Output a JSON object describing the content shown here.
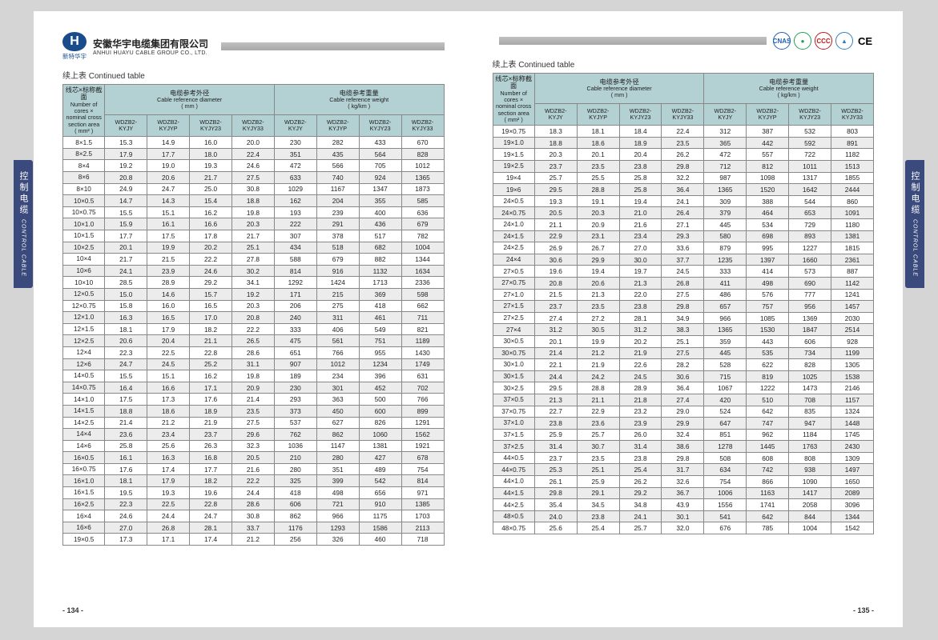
{
  "company": {
    "name_cn": "安徽华宇电缆集团有限公司",
    "name_en": "ANHUI HUAYU CABLE GROUP CO., LTD.",
    "sublogo": "新特华宇"
  },
  "continued": "续上表 Continued table",
  "sidetab": {
    "cn": "控制电缆",
    "en": "CONTROL CABLE"
  },
  "headers": {
    "spec": {
      "cn": "线芯×标称截面",
      "en1": "Number of cores ×",
      "en2": "nominal cross",
      "en3": "section area",
      "unit": "( mm² )"
    },
    "dia": {
      "cn": "电缆参考外径",
      "en": "Cable reference diameter",
      "unit": "( mm )"
    },
    "wt": {
      "cn": "电缆参考重量",
      "en": "Cable reference weight",
      "unit": "( kg/km )"
    },
    "cols": [
      "WDZB2-KYJY",
      "WDZB2-KYJYP",
      "WDZB2-KYJY23",
      "WDZB2-KYJY33"
    ]
  },
  "certs": [
    "CNAS",
    "●",
    "CCC",
    "▲",
    "CE"
  ],
  "cert_colors": [
    "#2060b0",
    "#20a050",
    "#c01818",
    "#3080c0",
    "#000"
  ],
  "pages": {
    "left": "- 134 -",
    "right": "- 135 -"
  },
  "left_rows": [
    [
      "8×1.5",
      "15.3",
      "14.9",
      "16.0",
      "20.0",
      "230",
      "282",
      "433",
      "670"
    ],
    [
      "8×2.5",
      "17.9",
      "17.7",
      "18.0",
      "22.4",
      "351",
      "435",
      "564",
      "828"
    ],
    [
      "8×4",
      "19.2",
      "19.0",
      "19.3",
      "24.6",
      "472",
      "566",
      "705",
      "1012"
    ],
    [
      "8×6",
      "20.8",
      "20.6",
      "21.7",
      "27.5",
      "633",
      "740",
      "924",
      "1365"
    ],
    [
      "8×10",
      "24.9",
      "24.7",
      "25.0",
      "30.8",
      "1029",
      "1167",
      "1347",
      "1873"
    ],
    [
      "10×0.5",
      "14.7",
      "14.3",
      "15.4",
      "18.8",
      "162",
      "204",
      "355",
      "585"
    ],
    [
      "10×0.75",
      "15.5",
      "15.1",
      "16.2",
      "19.8",
      "193",
      "239",
      "400",
      "636"
    ],
    [
      "10×1.0",
      "15.9",
      "16.1",
      "16.6",
      "20.3",
      "222",
      "291",
      "436",
      "679"
    ],
    [
      "10×1.5",
      "17.7",
      "17.5",
      "17.8",
      "21.7",
      "307",
      "378",
      "517",
      "782"
    ],
    [
      "10×2.5",
      "20.1",
      "19.9",
      "20.2",
      "25.1",
      "434",
      "518",
      "682",
      "1004"
    ],
    [
      "10×4",
      "21.7",
      "21.5",
      "22.2",
      "27.8",
      "588",
      "679",
      "882",
      "1344"
    ],
    [
      "10×6",
      "24.1",
      "23.9",
      "24.6",
      "30.2",
      "814",
      "916",
      "1132",
      "1634"
    ],
    [
      "10×10",
      "28.5",
      "28.9",
      "29.2",
      "34.1",
      "1292",
      "1424",
      "1713",
      "2336"
    ],
    [
      "12×0.5",
      "15.0",
      "14.6",
      "15.7",
      "19.2",
      "171",
      "215",
      "369",
      "598"
    ],
    [
      "12×0.75",
      "15.8",
      "16.0",
      "16.5",
      "20.3",
      "206",
      "275",
      "418",
      "662"
    ],
    [
      "12×1.0",
      "16.3",
      "16.5",
      "17.0",
      "20.8",
      "240",
      "311",
      "461",
      "711"
    ],
    [
      "12×1.5",
      "18.1",
      "17.9",
      "18.2",
      "22.2",
      "333",
      "406",
      "549",
      "821"
    ],
    [
      "12×2.5",
      "20.6",
      "20.4",
      "21.1",
      "26.5",
      "475",
      "561",
      "751",
      "1189"
    ],
    [
      "12×4",
      "22.3",
      "22.5",
      "22.8",
      "28.6",
      "651",
      "766",
      "955",
      "1430"
    ],
    [
      "12×6",
      "24.7",
      "24.5",
      "25.2",
      "31.1",
      "907",
      "1012",
      "1234",
      "1749"
    ],
    [
      "14×0.5",
      "15.5",
      "15.1",
      "16.2",
      "19.8",
      "189",
      "234",
      "396",
      "631"
    ],
    [
      "14×0.75",
      "16.4",
      "16.6",
      "17.1",
      "20.9",
      "230",
      "301",
      "452",
      "702"
    ],
    [
      "14×1.0",
      "17.5",
      "17.3",
      "17.6",
      "21.4",
      "293",
      "363",
      "500",
      "766"
    ],
    [
      "14×1.5",
      "18.8",
      "18.6",
      "18.9",
      "23.5",
      "373",
      "450",
      "600",
      "899"
    ],
    [
      "14×2.5",
      "21.4",
      "21.2",
      "21.9",
      "27.5",
      "537",
      "627",
      "826",
      "1291"
    ],
    [
      "14×4",
      "23.6",
      "23.4",
      "23.7",
      "29.6",
      "762",
      "862",
      "1060",
      "1562"
    ],
    [
      "14×6",
      "25.8",
      "25.6",
      "26.3",
      "32.3",
      "1036",
      "1147",
      "1381",
      "1921"
    ],
    [
      "16×0.5",
      "16.1",
      "16.3",
      "16.8",
      "20.5",
      "210",
      "280",
      "427",
      "678"
    ],
    [
      "16×0.75",
      "17.6",
      "17.4",
      "17.7",
      "21.6",
      "280",
      "351",
      "489",
      "754"
    ],
    [
      "16×1.0",
      "18.1",
      "17.9",
      "18.2",
      "22.2",
      "325",
      "399",
      "542",
      "814"
    ],
    [
      "16×1.5",
      "19.5",
      "19.3",
      "19.6",
      "24.4",
      "418",
      "498",
      "656",
      "971"
    ],
    [
      "16×2.5",
      "22.3",
      "22.5",
      "22.8",
      "28.6",
      "606",
      "721",
      "910",
      "1385"
    ],
    [
      "16×4",
      "24.6",
      "24.4",
      "24.7",
      "30.8",
      "862",
      "966",
      "1175",
      "1703"
    ],
    [
      "16×6",
      "27.0",
      "26.8",
      "28.1",
      "33.7",
      "1176",
      "1293",
      "1586",
      "2113"
    ],
    [
      "19×0.5",
      "17.3",
      "17.1",
      "17.4",
      "21.2",
      "256",
      "326",
      "460",
      "718"
    ]
  ],
  "right_rows": [
    [
      "19×0.75",
      "18.3",
      "18.1",
      "18.4",
      "22.4",
      "312",
      "387",
      "532",
      "803"
    ],
    [
      "19×1.0",
      "18.8",
      "18.6",
      "18.9",
      "23.5",
      "365",
      "442",
      "592",
      "891"
    ],
    [
      "19×1.5",
      "20.3",
      "20.1",
      "20.4",
      "26.2",
      "472",
      "557",
      "722",
      "1182"
    ],
    [
      "19×2.5",
      "23.7",
      "23.5",
      "23.8",
      "29.8",
      "712",
      "812",
      "1011",
      "1513"
    ],
    [
      "19×4",
      "25.7",
      "25.5",
      "25.8",
      "32.2",
      "987",
      "1098",
      "1317",
      "1855"
    ],
    [
      "19×6",
      "29.5",
      "28.8",
      "25.8",
      "36.4",
      "1365",
      "1520",
      "1642",
      "2444"
    ],
    [
      "24×0.5",
      "19.3",
      "19.1",
      "19.4",
      "24.1",
      "309",
      "388",
      "544",
      "860"
    ],
    [
      "24×0.75",
      "20.5",
      "20.3",
      "21.0",
      "26.4",
      "379",
      "464",
      "653",
      "1091"
    ],
    [
      "24×1.0",
      "21.1",
      "20.9",
      "21.6",
      "27.1",
      "445",
      "534",
      "729",
      "1180"
    ],
    [
      "24×1.5",
      "22.9",
      "23.1",
      "23.4",
      "29.3",
      "580",
      "698",
      "893",
      "1381"
    ],
    [
      "24×2.5",
      "26.9",
      "26.7",
      "27.0",
      "33.6",
      "879",
      "995",
      "1227",
      "1815"
    ],
    [
      "24×4",
      "30.6",
      "29.9",
      "30.0",
      "37.7",
      "1235",
      "1397",
      "1660",
      "2361"
    ],
    [
      "27×0.5",
      "19.6",
      "19.4",
      "19.7",
      "24.5",
      "333",
      "414",
      "573",
      "887"
    ],
    [
      "27×0.75",
      "20.8",
      "20.6",
      "21.3",
      "26.8",
      "411",
      "498",
      "690",
      "1142"
    ],
    [
      "27×1.0",
      "21.5",
      "21.3",
      "22.0",
      "27.5",
      "486",
      "576",
      "777",
      "1241"
    ],
    [
      "27×1.5",
      "23.7",
      "23.5",
      "23.8",
      "29.8",
      "657",
      "757",
      "956",
      "1457"
    ],
    [
      "27×2.5",
      "27.4",
      "27.2",
      "28.1",
      "34.9",
      "966",
      "1085",
      "1369",
      "2030"
    ],
    [
      "27×4",
      "31.2",
      "30.5",
      "31.2",
      "38.3",
      "1365",
      "1530",
      "1847",
      "2514"
    ],
    [
      "30×0.5",
      "20.1",
      "19.9",
      "20.2",
      "25.1",
      "359",
      "443",
      "606",
      "928"
    ],
    [
      "30×0.75",
      "21.4",
      "21.2",
      "21.9",
      "27.5",
      "445",
      "535",
      "734",
      "1199"
    ],
    [
      "30×1.0",
      "22.1",
      "21.9",
      "22.6",
      "28.2",
      "528",
      "622",
      "828",
      "1305"
    ],
    [
      "30×1.5",
      "24.4",
      "24.2",
      "24.5",
      "30.6",
      "715",
      "819",
      "1025",
      "1538"
    ],
    [
      "30×2.5",
      "29.5",
      "28.8",
      "28.9",
      "36.4",
      "1067",
      "1222",
      "1473",
      "2146"
    ],
    [
      "37×0.5",
      "21.3",
      "21.1",
      "21.8",
      "27.4",
      "420",
      "510",
      "708",
      "1157"
    ],
    [
      "37×0.75",
      "22.7",
      "22.9",
      "23.2",
      "29.0",
      "524",
      "642",
      "835",
      "1324"
    ],
    [
      "37×1.0",
      "23.8",
      "23.6",
      "23.9",
      "29.9",
      "647",
      "747",
      "947",
      "1448"
    ],
    [
      "37×1.5",
      "25.9",
      "25.7",
      "26.0",
      "32.4",
      "851",
      "962",
      "1184",
      "1745"
    ],
    [
      "37×2.5",
      "31.4",
      "30.7",
      "31.4",
      "38.6",
      "1278",
      "1445",
      "1763",
      "2430"
    ],
    [
      "44×0.5",
      "23.7",
      "23.5",
      "23.8",
      "29.8",
      "508",
      "608",
      "808",
      "1309"
    ],
    [
      "44×0.75",
      "25.3",
      "25.1",
      "25.4",
      "31.7",
      "634",
      "742",
      "938",
      "1497"
    ],
    [
      "44×1.0",
      "26.1",
      "25.9",
      "26.2",
      "32.6",
      "754",
      "866",
      "1090",
      "1650"
    ],
    [
      "44×1.5",
      "29.8",
      "29.1",
      "29.2",
      "36.7",
      "1006",
      "1163",
      "1417",
      "2089"
    ],
    [
      "44×2.5",
      "35.4",
      "34.5",
      "34.8",
      "43.9",
      "1556",
      "1741",
      "2058",
      "3096"
    ],
    [
      "48×0.5",
      "24.0",
      "23.8",
      "24.1",
      "30.1",
      "541",
      "642",
      "844",
      "1344"
    ],
    [
      "48×0.75",
      "25.6",
      "25.4",
      "25.7",
      "32.0",
      "676",
      "785",
      "1004",
      "1542"
    ]
  ]
}
